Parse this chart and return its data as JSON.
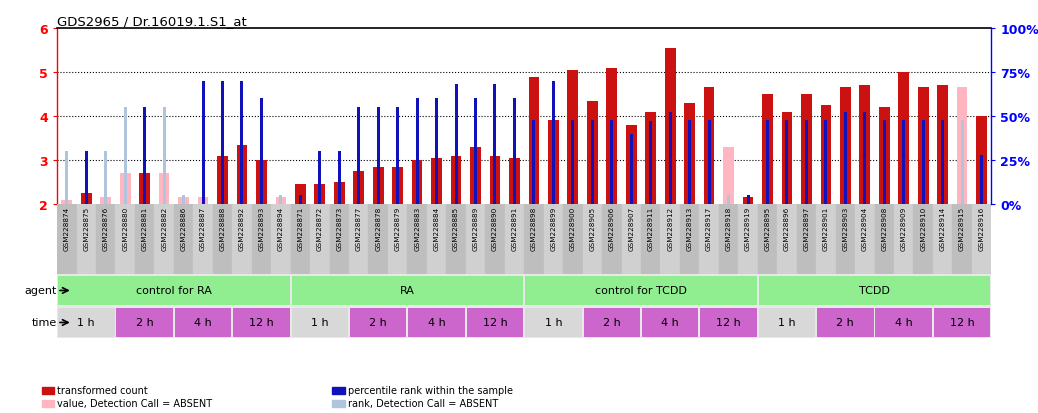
{
  "title": "GDS2965 / Dr.16019.1.S1_at",
  "samples": [
    "GSM228874",
    "GSM228875",
    "GSM228876",
    "GSM228880",
    "GSM228881",
    "GSM228882",
    "GSM228886",
    "GSM228887",
    "GSM228888",
    "GSM228892",
    "GSM228893",
    "GSM228894",
    "GSM228871",
    "GSM228872",
    "GSM228873",
    "GSM228877",
    "GSM228878",
    "GSM228879",
    "GSM228883",
    "GSM228884",
    "GSM228885",
    "GSM228889",
    "GSM228890",
    "GSM228891",
    "GSM228898",
    "GSM228899",
    "GSM228900",
    "GSM228905",
    "GSM228906",
    "GSM228907",
    "GSM228911",
    "GSM228912",
    "GSM228913",
    "GSM228917",
    "GSM228918",
    "GSM228919",
    "GSM228895",
    "GSM228896",
    "GSM228897",
    "GSM228901",
    "GSM228903",
    "GSM228904",
    "GSM228908",
    "GSM228909",
    "GSM228910",
    "GSM228914",
    "GSM228915",
    "GSM228916"
  ],
  "red_values": [
    2.1,
    2.25,
    2.15,
    2.7,
    2.7,
    2.7,
    2.15,
    2.15,
    3.1,
    3.35,
    3.0,
    2.15,
    2.45,
    2.45,
    2.5,
    2.75,
    2.85,
    2.85,
    3.0,
    3.05,
    3.1,
    3.3,
    3.1,
    3.05,
    4.88,
    3.9,
    5.05,
    4.35,
    5.1,
    3.8,
    4.1,
    5.55,
    4.3,
    4.65,
    3.3,
    2.15,
    4.5,
    4.1,
    4.5,
    4.25,
    4.65,
    4.7,
    4.2,
    5.0,
    4.65,
    4.7,
    4.65,
    4.0
  ],
  "blue_values_pct": [
    30,
    30,
    30,
    55,
    55,
    55,
    5,
    70,
    70,
    70,
    60,
    5,
    5,
    30,
    30,
    55,
    55,
    55,
    60,
    60,
    68,
    60,
    68,
    60,
    48,
    70,
    48,
    48,
    48,
    40,
    47,
    52,
    48,
    48,
    5,
    5,
    48,
    48,
    48,
    48,
    52,
    52,
    48,
    48,
    48,
    48,
    48,
    28
  ],
  "absent_red": [
    true,
    false,
    true,
    true,
    false,
    true,
    true,
    true,
    false,
    false,
    false,
    true,
    false,
    false,
    false,
    false,
    false,
    false,
    false,
    false,
    false,
    false,
    false,
    false,
    false,
    false,
    false,
    false,
    false,
    false,
    false,
    false,
    false,
    false,
    true,
    false,
    false,
    false,
    false,
    false,
    false,
    false,
    false,
    false,
    false,
    false,
    true,
    false
  ],
  "absent_blue": [
    true,
    false,
    true,
    true,
    false,
    true,
    true,
    false,
    false,
    false,
    false,
    true,
    false,
    false,
    false,
    false,
    false,
    false,
    false,
    false,
    false,
    false,
    false,
    false,
    false,
    false,
    false,
    false,
    false,
    false,
    false,
    false,
    false,
    false,
    true,
    false,
    false,
    false,
    false,
    false,
    false,
    false,
    false,
    false,
    false,
    false,
    true,
    false
  ],
  "agent_groups": [
    {
      "label": "control for RA",
      "start": 0,
      "end": 11,
      "color": "#90EE90"
    },
    {
      "label": "RA",
      "start": 12,
      "end": 23,
      "color": "#90EE90"
    },
    {
      "label": "control for TCDD",
      "start": 24,
      "end": 35,
      "color": "#90EE90"
    },
    {
      "label": "TCDD",
      "start": 36,
      "end": 47,
      "color": "#90EE90"
    }
  ],
  "time_groups": [
    {
      "label": "1 h",
      "start": 0,
      "end": 2
    },
    {
      "label": "2 h",
      "start": 3,
      "end": 5
    },
    {
      "label": "4 h",
      "start": 6,
      "end": 8
    },
    {
      "label": "12 h",
      "start": 9,
      "end": 11
    },
    {
      "label": "1 h",
      "start": 12,
      "end": 14
    },
    {
      "label": "2 h",
      "start": 15,
      "end": 17
    },
    {
      "label": "4 h",
      "start": 18,
      "end": 20
    },
    {
      "label": "12 h",
      "start": 21,
      "end": 23
    },
    {
      "label": "1 h",
      "start": 24,
      "end": 26
    },
    {
      "label": "2 h",
      "start": 27,
      "end": 29
    },
    {
      "label": "4 h",
      "start": 30,
      "end": 32
    },
    {
      "label": "12 h",
      "start": 33,
      "end": 35
    },
    {
      "label": "1 h",
      "start": 36,
      "end": 38
    },
    {
      "label": "2 h",
      "start": 39,
      "end": 41
    },
    {
      "label": "4 h",
      "start": 42,
      "end": 44
    },
    {
      "label": "12 h",
      "start": 45,
      "end": 47
    }
  ],
  "ylim": [
    2,
    6
  ],
  "yticks": [
    2,
    3,
    4,
    5,
    6
  ],
  "right_ylim": [
    0,
    100
  ],
  "right_yticks": [
    0,
    25,
    50,
    75,
    100
  ],
  "bar_width": 0.55,
  "red_color": "#CC1111",
  "blue_color": "#1111BB",
  "pink_color": "#FFB6C1",
  "light_blue_color": "#B0C4DE",
  "tick_label_bg": "#C8C8C8",
  "time_color_1h": "#D8D8D8",
  "time_color_other": "#CC66CC"
}
